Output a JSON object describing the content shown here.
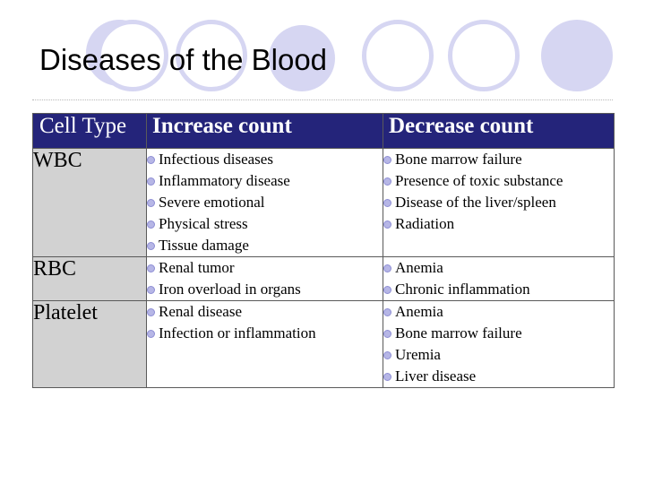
{
  "title": "Diseases of the Blood",
  "colors": {
    "header_bg": "#24247a",
    "first_column_bg": "#d2d2d2",
    "decorative_circles": "#d6d6f2",
    "bullet": "#b6b6e6"
  },
  "icons": {
    "bullet": "bullet-dot-icon"
  },
  "table": {
    "headers": [
      "Cell Type",
      "Increase count",
      "Decrease count"
    ],
    "rows": [
      {
        "type": "WBC",
        "increase": [
          "Infectious diseases",
          "Inflammatory disease",
          "Severe emotional",
          "Physical stress",
          "Tissue damage"
        ],
        "decrease": [
          "Bone marrow failure",
          "Presence of toxic substance",
          "Disease of the liver/spleen",
          "Radiation"
        ]
      },
      {
        "type": "RBC",
        "increase": [
          "Renal tumor",
          "Iron overload in organs"
        ],
        "decrease": [
          "Anemia",
          "Chronic inflammation"
        ]
      },
      {
        "type": "Platelet",
        "increase": [
          "Renal disease",
          "Infection or inflammation"
        ],
        "decrease": [
          "Anemia",
          "Bone marrow failure",
          "Uremia",
          "Liver disease"
        ]
      }
    ]
  }
}
